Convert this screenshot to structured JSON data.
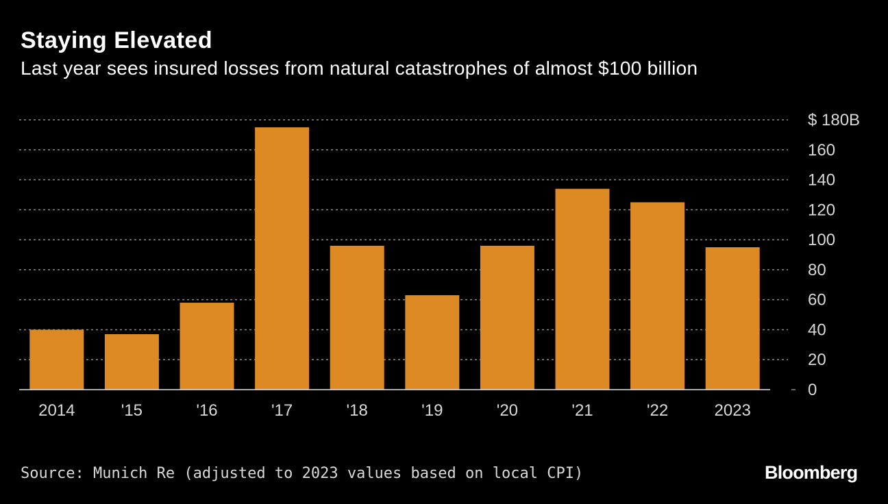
{
  "header": {
    "title": "Staying Elevated",
    "subtitle": "Last year sees insured losses from natural catastrophes of almost $100 billion"
  },
  "footer": {
    "source": "Source: Munich Re (adjusted to 2023 values based on local CPI)",
    "logo": "Bloomberg"
  },
  "colors": {
    "background": "#000000",
    "bar": "#dd8a24",
    "grid": "#8c8c8c",
    "text": "#ffffff",
    "muted_text": "#d9d9d9"
  },
  "chart_data": {
    "type": "bar",
    "title": "Staying Elevated",
    "subtitle": "Last year sees insured losses from natural catastrophes of almost $100 billion",
    "xlabel": "",
    "ylabel": "",
    "categories": [
      "2014",
      "'15",
      "'16",
      "'17",
      "'18",
      "'19",
      "'20",
      "'21",
      "'22",
      "2023"
    ],
    "values": [
      40,
      37,
      58,
      175,
      96,
      63,
      96,
      134,
      125,
      95
    ],
    "ylim": [
      0,
      180
    ],
    "yticks": [
      0,
      20,
      40,
      60,
      80,
      100,
      120,
      140,
      160,
      180
    ],
    "ytick_labels": [
      "0",
      "20",
      "40",
      "60",
      "80",
      "100",
      "120",
      "140",
      "160",
      "$ 180B"
    ],
    "grid": "horizontal dotted",
    "y_axis_side": "right",
    "legend": "none"
  }
}
